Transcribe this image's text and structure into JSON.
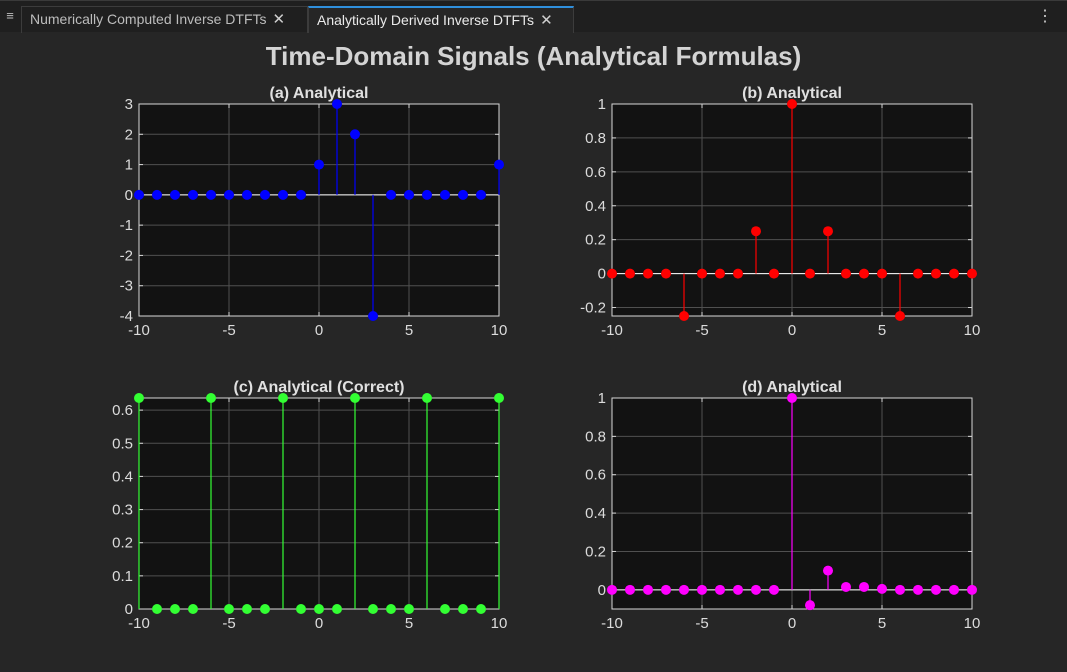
{
  "tabs": [
    {
      "label": "Numerically Computed Inverse DTFTs",
      "active": false
    },
    {
      "label": "Analytically Derived Inverse DTFTs",
      "active": true
    }
  ],
  "icons": {
    "menu": "menu-icon",
    "close": "close-icon",
    "more": "kebab-menu-icon"
  },
  "figure_title": "Time-Domain Signals (Analytical Formulas)",
  "chart_data": [
    {
      "type": "stem",
      "title": "(a) Analytical",
      "color": "#0000ff",
      "xlim": [
        -10,
        10
      ],
      "ylim": [
        -4,
        3
      ],
      "xticks": [
        -10,
        -5,
        0,
        5,
        10
      ],
      "yticks": [
        -4,
        -3,
        -2,
        -1,
        0,
        1,
        2,
        3
      ],
      "ytick_labels": [
        "-4",
        "-3",
        "-2",
        "-1",
        "0",
        "1",
        "2",
        "3"
      ],
      "grid": true,
      "x": [
        -10,
        -9,
        -8,
        -7,
        -6,
        -5,
        -4,
        -3,
        -2,
        -1,
        0,
        1,
        2,
        3,
        4,
        5,
        6,
        7,
        8,
        9,
        10
      ],
      "y": [
        0,
        0,
        0,
        0,
        0,
        0,
        0,
        0,
        0,
        0,
        1,
        3,
        2,
        -4,
        0,
        0,
        0,
        0,
        0,
        0,
        1
      ]
    },
    {
      "type": "stem",
      "title": "(b) Analytical",
      "color": "#ff0000",
      "xlim": [
        -10,
        10
      ],
      "ylim": [
        -0.25,
        1
      ],
      "xticks": [
        -10,
        -5,
        0,
        5,
        10
      ],
      "yticks": [
        -0.2,
        0,
        0.2,
        0.4,
        0.6,
        0.8,
        1
      ],
      "ytick_labels": [
        "-0.2",
        "0",
        "0.2",
        "0.4",
        "0.6",
        "0.8",
        "1"
      ],
      "grid": true,
      "x": [
        -10,
        -9,
        -8,
        -7,
        -6,
        -5,
        -4,
        -3,
        -2,
        -1,
        0,
        1,
        2,
        3,
        4,
        5,
        6,
        7,
        8,
        9,
        10
      ],
      "y": [
        0,
        0,
        0,
        0,
        -0.25,
        0,
        0,
        0,
        0.25,
        0,
        1,
        0,
        0.25,
        0,
        0,
        0,
        -0.25,
        0,
        0,
        0,
        0
      ]
    },
    {
      "type": "stem",
      "title": "(c) Analytical (Correct)",
      "color": "#33ff33",
      "xlim": [
        -10,
        10
      ],
      "ylim": [
        0,
        0.6366
      ],
      "xticks": [
        -10,
        -5,
        0,
        5,
        10
      ],
      "yticks": [
        0,
        0.1,
        0.2,
        0.3,
        0.4,
        0.5,
        0.6
      ],
      "ytick_labels": [
        "0",
        "0.1",
        "0.2",
        "0.3",
        "0.4",
        "0.5",
        "0.6"
      ],
      "grid": true,
      "x": [
        -10,
        -9,
        -8,
        -7,
        -6,
        -5,
        -4,
        -3,
        -2,
        -1,
        0,
        1,
        2,
        3,
        4,
        5,
        6,
        7,
        8,
        9,
        10
      ],
      "y": [
        0.6366,
        0,
        0,
        0,
        0.6366,
        0,
        0,
        0,
        0.6366,
        0,
        0,
        0,
        0.6366,
        0,
        0,
        0,
        0.6366,
        0,
        0,
        0,
        0.6366
      ]
    },
    {
      "type": "stem",
      "title": "(d) Analytical",
      "color": "#ff00ff",
      "xlim": [
        -10,
        10
      ],
      "ylim": [
        -0.1,
        1
      ],
      "xticks": [
        -10,
        -5,
        0,
        5,
        10
      ],
      "yticks": [
        0,
        0.2,
        0.4,
        0.6,
        0.8,
        1
      ],
      "ytick_labels": [
        "0",
        "0.2",
        "0.4",
        "0.6",
        "0.8",
        "1"
      ],
      "grid": true,
      "x": [
        -10,
        -9,
        -8,
        -7,
        -6,
        -5,
        -4,
        -3,
        -2,
        -1,
        0,
        1,
        2,
        3,
        4,
        5,
        6,
        7,
        8,
        9,
        10
      ],
      "y": [
        0,
        0,
        0,
        0,
        0,
        0,
        0,
        0,
        0,
        0,
        1,
        -0.08,
        0.1,
        0.015,
        0.015,
        0.005,
        0,
        0,
        0,
        0,
        0
      ]
    }
  ]
}
